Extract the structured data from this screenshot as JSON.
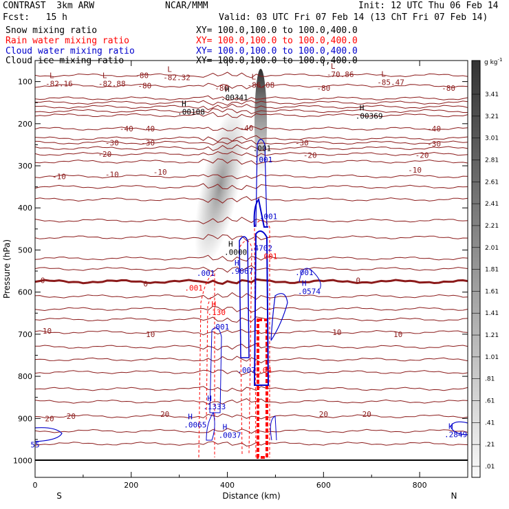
{
  "header": {
    "model": "CONTRAST  3km ARW",
    "center": "NCAR/MMM",
    "init": "Init: 12 UTC Thu 06 Feb 14",
    "fcst": "Fcst:   15 h",
    "valid": "Valid: 03 UTC Fri 07 Feb 14 (13 ChT Fri 07 Feb 14)"
  },
  "fields": [
    {
      "label": "Snow mixing ratio",
      "xy": "XY= 100.0,100.0 to 100.0,400.0",
      "color": "#000000"
    },
    {
      "label": "Rain water mixing ratio",
      "xy": "XY= 100.0,100.0 to 100.0,400.0",
      "color": "#ff0000"
    },
    {
      "label": "Cloud water mixing ratio",
      "xy": "XY= 100.0,100.0 to 100.0,400.0",
      "color": "#0000cc"
    },
    {
      "label": "Cloud ice mixing ratio",
      "xy": "XY= 100.0,100.0 to 100.0,400.0",
      "color": "#000000"
    }
  ],
  "chart_data": {
    "type": "cross-section",
    "xlabel": "Distance (km)",
    "ylabel": "Pressure (hPa)",
    "xlim": [
      0,
      900
    ],
    "ylim": [
      1040,
      50
    ],
    "xticks": [
      0,
      200,
      400,
      600,
      800
    ],
    "yticks": [
      100,
      200,
      300,
      400,
      500,
      600,
      700,
      800,
      900,
      1000
    ],
    "x_end_labels": {
      "left": "S",
      "right": "N"
    },
    "colorbar": {
      "unit": "g kg",
      "unit_exp": "-1",
      "ticks": [
        "3.41",
        "3.21",
        "3.01",
        "2.81",
        "2.61",
        "2.41",
        "2.21",
        "2.01",
        "1.81",
        "1.61",
        "1.41",
        "1.21",
        "1.01",
        ".81",
        ".61",
        ".41",
        ".21",
        ".01"
      ]
    },
    "temperature_contours": {
      "color": "#8b1a1a",
      "levels": [
        {
          "label": "-80",
          "p": 85
        },
        {
          "label": "-80",
          "p": 110
        },
        {
          "label": "-40",
          "p": 212
        },
        {
          "label": "-30",
          "p": 245
        },
        {
          "label": "-20",
          "p": 272
        },
        {
          "label": "-10",
          "p": 325
        },
        {
          "label": "0",
          "p": 575
        },
        {
          "label": "10",
          "p": 695
        },
        {
          "label": "20",
          "p": 895
        }
      ],
      "labels_drawn": [
        {
          "text": "-80",
          "x": 222,
          "p": 85
        },
        {
          "text": "-80",
          "x": 228,
          "p": 110
        },
        {
          "text": "-80",
          "x": 388,
          "p": 115
        },
        {
          "text": "-80",
          "x": 600,
          "p": 115
        },
        {
          "text": "-80",
          "x": 860,
          "p": 115
        },
        {
          "text": "-40",
          "x": 190,
          "p": 212
        },
        {
          "text": "-40",
          "x": 235,
          "p": 212
        },
        {
          "text": "-40",
          "x": 440,
          "p": 210
        },
        {
          "text": "-40",
          "x": 830,
          "p": 212
        },
        {
          "text": "-30",
          "x": 160,
          "p": 245
        },
        {
          "text": "-30",
          "x": 235,
          "p": 245
        },
        {
          "text": "-30",
          "x": 555,
          "p": 245
        },
        {
          "text": "-30",
          "x": 830,
          "p": 248
        },
        {
          "text": "-20",
          "x": 145,
          "p": 272
        },
        {
          "text": "-20",
          "x": 572,
          "p": 275
        },
        {
          "text": "-20",
          "x": 805,
          "p": 275
        },
        {
          "text": "-10",
          "x": 50,
          "p": 325
        },
        {
          "text": "-10",
          "x": 160,
          "p": 320
        },
        {
          "text": "-10",
          "x": 260,
          "p": 315
        },
        {
          "text": "-10",
          "x": 790,
          "p": 310
        },
        {
          "text": "0",
          "x": 16,
          "p": 572
        },
        {
          "text": "0",
          "x": 230,
          "p": 580
        },
        {
          "text": "0",
          "x": 672,
          "p": 572
        },
        {
          "text": "10",
          "x": 25,
          "p": 692
        },
        {
          "text": "10",
          "x": 240,
          "p": 700
        },
        {
          "text": "10",
          "x": 628,
          "p": 695
        },
        {
          "text": "10",
          "x": 755,
          "p": 700
        },
        {
          "text": "20",
          "x": 30,
          "p": 900
        },
        {
          "text": "20",
          "x": 75,
          "p": 895
        },
        {
          "text": "20",
          "x": 270,
          "p": 890
        },
        {
          "text": "20",
          "x": 600,
          "p": 890
        },
        {
          "text": "20",
          "x": 690,
          "p": 890
        }
      ]
    },
    "extrema": [
      {
        "mark": "L",
        "value": "-82.16",
        "x": 30,
        "p": 95,
        "color": "#8b1a1a"
      },
      {
        "mark": "L",
        "value": "-82.88",
        "x": 140,
        "p": 95,
        "color": "#8b1a1a"
      },
      {
        "mark": "L",
        "value": "-82.32",
        "x": 275,
        "p": 80,
        "color": "#8b1a1a"
      },
      {
        "mark": "L",
        "value": "-86.08",
        "x": 450,
        "p": 98,
        "color": "#8b1a1a"
      },
      {
        "mark": "L",
        "value": "-70.86",
        "x": 615,
        "p": 73,
        "color": "#8b1a1a"
      },
      {
        "mark": "L",
        "value": "-85.47",
        "x": 720,
        "p": 92,
        "color": "#8b1a1a"
      },
      {
        "mark": "H",
        "value": ".00341",
        "x": 395,
        "p": 128,
        "color": "#000000"
      },
      {
        "mark": "H",
        "value": ".00108",
        "x": 305,
        "p": 162,
        "color": "#000000"
      },
      {
        "mark": "H",
        "value": ".00369",
        "x": 675,
        "p": 172,
        "color": "#000000"
      },
      {
        "mark": "H",
        "value": ".0000",
        "x": 402,
        "p": 495,
        "color": "#000000"
      },
      {
        "mark": "H",
        "value": ".9067",
        "x": 415,
        "p": 540,
        "color": "#0000cc"
      },
      {
        "mark": "H",
        "value": ".0574",
        "x": 555,
        "p": 588,
        "color": "#0000cc"
      },
      {
        "mark": "H",
        "value": ".130",
        "x": 367,
        "p": 638,
        "color": "#ff0000"
      },
      {
        "mark": "H",
        "value": ".1333",
        "x": 358,
        "p": 862,
        "color": "#0000cc"
      },
      {
        "mark": "H",
        "value": ".0065",
        "x": 318,
        "p": 905,
        "color": "#0000cc"
      },
      {
        "mark": "H",
        "value": ".0037",
        "x": 390,
        "p": 930,
        "color": "#0000cc"
      },
      {
        "mark": "H",
        "value": ".2849",
        "x": 860,
        "p": 928,
        "color": "#0000cc"
      }
    ],
    "contour_labels": [
      {
        "text": ".001",
        "x": 472,
        "p": 258,
        "color": "#000000"
      },
      {
        "text": ".001",
        "x": 475,
        "p": 285,
        "color": "#0000cc"
      },
      {
        "text": ".001",
        "x": 485,
        "p": 420,
        "color": "#0000cc"
      },
      {
        "text": ".4702",
        "x": 470,
        "p": 495,
        "color": "#0000cc"
      },
      {
        "text": "001",
        "x": 490,
        "p": 515,
        "color": "#ff0000"
      },
      {
        "text": ".001",
        "x": 355,
        "p": 555,
        "color": "#0000cc"
      },
      {
        "text": ".001",
        "x": 330,
        "p": 590,
        "color": "#ff0000"
      },
      {
        "text": ".001",
        "x": 560,
        "p": 553,
        "color": "#0000cc"
      },
      {
        "text": ".001",
        "x": 385,
        "p": 682,
        "color": "#0000cc"
      },
      {
        "text": ".007",
        "x": 440,
        "p": 785,
        "color": "#0000cc"
      },
      {
        "text": ".04",
        "x": 478,
        "p": 785,
        "color": "#ff0000"
      },
      {
        "text": "55",
        "x": 0,
        "p": 962,
        "color": "#0000cc"
      }
    ]
  }
}
